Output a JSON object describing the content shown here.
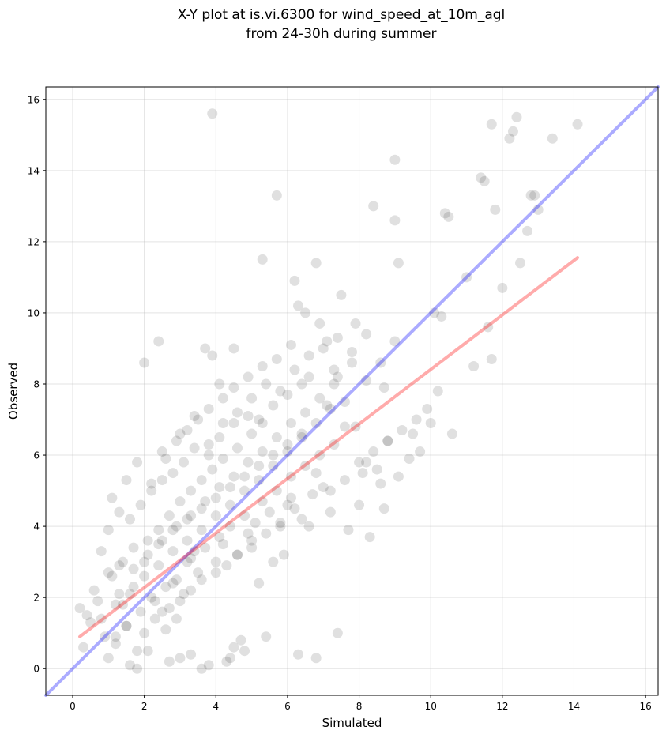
{
  "chart_data": {
    "type": "scatter",
    "title": "X-Y plot at is.vi.6300 for wind_speed_at_10m_agl",
    "subtitle": "from 24-30h during summer",
    "xlabel": "Simulated",
    "ylabel": "Observed",
    "xlim": [
      -0.75,
      16.35
    ],
    "ylim": [
      -0.75,
      16.35
    ],
    "xticks": [
      "0",
      "2",
      "4",
      "6",
      "8",
      "10",
      "12",
      "14",
      "16"
    ],
    "yticks": [
      "0",
      "2",
      "4",
      "6",
      "8",
      "10",
      "12",
      "14",
      "16"
    ],
    "grid": true,
    "colors": {
      "points": "#000000",
      "identity_line": "#0000ff",
      "fit_line": "#ff0000"
    },
    "lines": [
      {
        "role": "identity",
        "x": [
          -0.75,
          16.35
        ],
        "y": [
          -0.75,
          16.35
        ]
      },
      {
        "role": "fit",
        "x": [
          0.2,
          14.1
        ],
        "y": [
          0.9,
          11.55
        ]
      }
    ],
    "points_x": [
      3.9,
      5.7,
      9.0,
      12.4,
      11.7,
      12.2,
      12.3,
      14.1,
      13.4,
      11.5,
      11.4,
      12.8,
      12.9,
      12.7,
      13.0,
      11.8,
      10.4,
      10.5,
      9.0,
      8.4,
      9.1,
      5.3,
      6.2,
      6.8,
      11.0,
      12.0,
      12.5,
      11.7,
      11.2,
      11.6,
      10.1,
      10.3,
      10.2,
      9.9,
      9.7,
      9.5,
      9.4,
      9.1,
      8.7,
      8.8,
      8.5,
      8.3,
      8.7,
      8.2,
      7.9,
      7.5,
      7.3,
      7.8,
      7.1,
      6.3,
      6.5,
      2.0,
      2.4,
      3.9,
      3.7,
      4.5,
      4.1,
      6.9,
      7.4,
      7.6,
      7.9,
      8.2,
      8.0,
      7.7,
      7.2,
      6.6,
      6.1,
      5.9,
      5.6,
      4.9,
      5.2,
      3.1,
      2.9,
      2.6,
      2.7,
      3.3,
      3.6,
      4.4,
      4.8,
      0.3,
      0.5,
      0.2,
      0.4,
      0.9,
      1.0,
      1.2,
      1.6,
      1.8,
      2.1,
      3.0,
      3.8,
      4.3,
      4.5,
      4.7,
      5.4,
      6.3,
      6.8,
      7.4,
      0.6,
      0.8,
      1.1,
      1.4,
      1.3,
      1.7,
      2.2,
      2.5,
      2.8,
      3.2,
      3.5,
      3.4,
      4.0,
      4.2,
      4.6,
      5.0,
      5.1,
      5.5,
      5.8,
      6.0,
      6.4,
      6.7,
      7.0,
      1.5,
      1.9,
      2.3,
      2.6,
      2.9,
      3.3,
      3.7,
      4.1,
      4.4,
      4.8,
      5.3,
      5.7,
      6.1,
      6.5,
      6.9,
      7.3,
      1.0,
      1.3,
      1.6,
      1.9,
      2.2,
      2.5,
      2.8,
      3.1,
      3.4,
      3.8,
      4.1,
      4.5,
      4.9,
      5.2,
      5.6,
      6.0,
      6.4,
      1.2,
      1.5,
      1.8,
      2.0,
      2.3,
      2.7,
      3.0,
      3.3,
      3.6,
      4.0,
      4.3,
      4.6,
      5.0,
      5.4,
      5.8,
      6.2,
      0.7,
      1.0,
      1.4,
      1.7,
      2.1,
      2.4,
      2.7,
      3.0,
      3.3,
      3.6,
      3.9,
      4.2,
      4.6,
      5.0,
      5.3,
      1.1,
      1.5,
      1.8,
      2.2,
      2.5,
      2.9,
      3.2,
      3.5,
      3.8,
      4.2,
      4.5,
      4.9,
      5.3,
      5.7,
      6.1,
      6.6,
      7.1,
      7.6,
      8.1,
      8.6,
      9.2,
      0.8,
      1.2,
      1.6,
      2.0,
      2.4,
      2.8,
      3.2,
      3.6,
      4.0,
      4.4,
      4.8,
      5.2,
      5.6,
      6.0,
      6.4,
      6.8,
      7.2,
      2.6,
      3.0,
      3.4,
      3.8,
      4.2,
      4.6,
      5.0,
      5.4,
      5.8,
      6.2,
      6.6,
      7.0,
      7.4,
      7.8,
      8.2,
      8.6,
      9.0,
      9.6,
      10.0,
      10.6,
      1.3,
      1.7,
      2.1,
      2.5,
      2.9,
      3.3,
      3.7,
      4.1,
      4.5,
      4.9,
      5.3,
      5.7,
      6.1,
      6.5,
      6.9,
      7.3,
      2.0,
      2.4,
      2.8,
      3.2,
      3.6,
      4.0,
      4.4,
      4.8,
      5.2,
      5.6,
      6.0,
      6.4,
      6.8,
      7.2,
      7.6,
      8.0,
      8.4,
      8.8
    ],
    "points_y": [
      15.6,
      13.3,
      14.3,
      15.5,
      15.3,
      14.9,
      15.1,
      15.3,
      14.9,
      13.7,
      13.8,
      13.3,
      13.3,
      12.3,
      12.9,
      12.9,
      12.8,
      12.7,
      12.6,
      13.0,
      11.4,
      11.5,
      10.9,
      11.4,
      11.0,
      10.7,
      11.4,
      8.7,
      8.5,
      9.6,
      10.0,
      9.9,
      7.8,
      7.3,
      6.1,
      6.6,
      5.9,
      5.4,
      4.5,
      6.4,
      5.6,
      3.7,
      7.9,
      8.1,
      9.7,
      10.5,
      8.4,
      8.6,
      9.2,
      10.2,
      10.0,
      8.6,
      9.2,
      8.8,
      9.0,
      9.0,
      8.0,
      9.7,
      8.2,
      7.5,
      6.8,
      5.8,
      4.6,
      3.9,
      4.4,
      4.0,
      4.8,
      3.2,
      3.0,
      3.8,
      2.4,
      2.1,
      1.4,
      1.1,
      0.2,
      0.4,
      0.0,
      0.3,
      0.5,
      0.6,
      1.3,
      1.7,
      1.5,
      0.9,
      0.3,
      0.7,
      0.1,
      0.0,
      0.5,
      0.3,
      0.1,
      0.2,
      0.6,
      0.8,
      0.9,
      0.4,
      0.3,
      1.0,
      2.2,
      3.3,
      2.6,
      1.8,
      2.9,
      2.3,
      2.0,
      1.6,
      2.4,
      3.0,
      2.7,
      3.3,
      3.0,
      3.5,
      3.2,
      3.6,
      4.1,
      4.4,
      4.0,
      4.6,
      4.2,
      4.9,
      5.1,
      1.2,
      1.6,
      1.9,
      2.3,
      2.5,
      3.1,
      3.4,
      3.7,
      4.0,
      4.3,
      4.7,
      5.0,
      5.4,
      5.7,
      6.0,
      6.3,
      3.9,
      4.4,
      4.2,
      4.6,
      5.0,
      5.3,
      5.5,
      5.8,
      6.2,
      6.0,
      6.5,
      6.9,
      7.1,
      7.0,
      7.4,
      7.7,
      8.0,
      0.9,
      1.2,
      0.5,
      1.0,
      1.4,
      1.7,
      1.9,
      2.2,
      2.5,
      2.7,
      2.9,
      3.2,
      3.4,
      3.8,
      4.1,
      4.5,
      1.9,
      2.7,
      3.0,
      3.4,
      3.6,
      3.9,
      4.3,
      4.7,
      5.0,
      5.3,
      5.6,
      5.9,
      6.2,
      6.6,
      6.9,
      4.8,
      5.3,
      5.8,
      5.2,
      6.1,
      6.4,
      6.7,
      7.0,
      7.3,
      7.6,
      7.9,
      8.2,
      8.5,
      8.7,
      9.1,
      8.2,
      7.4,
      6.8,
      5.5,
      5.2,
      6.7,
      1.4,
      1.8,
      2.1,
      2.6,
      2.9,
      3.3,
      3.6,
      3.9,
      4.3,
      4.6,
      5.0,
      5.3,
      5.7,
      6.1,
      6.5,
      6.9,
      7.3,
      5.9,
      6.6,
      7.1,
      6.3,
      6.9,
      7.2,
      7.6,
      8.0,
      7.8,
      8.4,
      8.8,
      9.0,
      9.3,
      8.9,
      9.4,
      8.6,
      9.2,
      7.0,
      6.9,
      6.6,
      2.1,
      2.8,
      3.2,
      3.6,
      4.0,
      4.3,
      4.7,
      5.1,
      5.4,
      5.8,
      6.1,
      6.5,
      6.9,
      7.2,
      7.6,
      8.0,
      3.0,
      3.5,
      3.9,
      4.2,
      4.5,
      4.8,
      5.1,
      5.4,
      5.7,
      6.0,
      6.3,
      6.6,
      5.5,
      5.0,
      5.3,
      5.8,
      6.1,
      6.4
    ]
  }
}
